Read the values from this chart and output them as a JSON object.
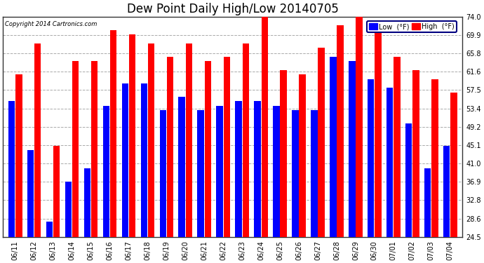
{
  "title": "Dew Point Daily High/Low 20140705",
  "copyright": "Copyright 2014 Cartronics.com",
  "dates": [
    "06/11",
    "06/12",
    "06/13",
    "06/14",
    "06/15",
    "06/16",
    "06/17",
    "06/18",
    "06/19",
    "06/20",
    "06/21",
    "06/22",
    "06/23",
    "06/24",
    "06/25",
    "06/26",
    "06/27",
    "06/28",
    "06/29",
    "06/30",
    "07/01",
    "07/02",
    "07/03",
    "07/04"
  ],
  "low_values": [
    55,
    44,
    28,
    37,
    40,
    54,
    59,
    59,
    53,
    56,
    53,
    54,
    55,
    55,
    54,
    53,
    53,
    65,
    64,
    60,
    58,
    50,
    40,
    45
  ],
  "high_values": [
    61,
    68,
    45,
    64,
    64,
    71,
    70,
    68,
    65,
    68,
    64,
    65,
    68,
    74,
    62,
    61,
    67,
    72,
    74,
    71,
    65,
    62,
    60,
    57
  ],
  "low_color": "#0000ff",
  "high_color": "#ff0000",
  "bg_color": "#ffffff",
  "grid_color": "#aaaaaa",
  "ymin": 24.5,
  "ymax": 74.0,
  "yticks": [
    24.5,
    28.6,
    32.8,
    36.9,
    41.0,
    45.1,
    49.2,
    53.4,
    57.5,
    61.6,
    65.8,
    69.9,
    74.0
  ],
  "title_fontsize": 12,
  "legend_low_label": "Low  (°F)",
  "legend_high_label": "High  (°F)",
  "bar_width": 0.35,
  "bar_gap": 0.03
}
